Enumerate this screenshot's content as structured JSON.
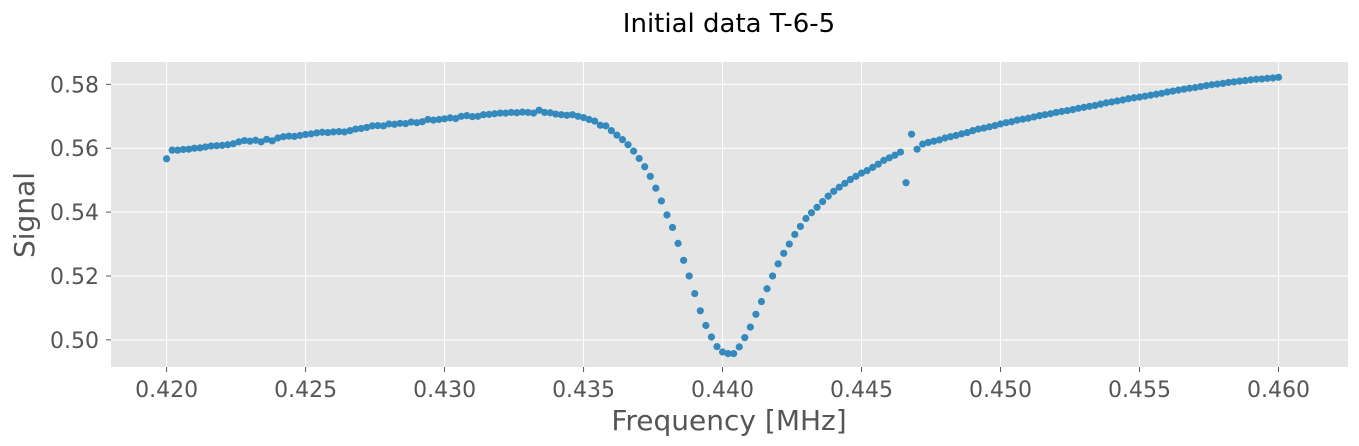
{
  "chart_data": {
    "type": "scatter",
    "title": "Initial data T-6-5",
    "xlabel": "Frequency [MHz]",
    "ylabel": "Signal",
    "xlim": [
      0.418,
      0.4625
    ],
    "ylim": [
      0.4915,
      0.587
    ],
    "xticks": [
      0.42,
      0.425,
      0.43,
      0.435,
      0.44,
      0.445,
      0.45,
      0.455,
      0.46
    ],
    "xtick_labels": [
      "0.420",
      "0.425",
      "0.430",
      "0.435",
      "0.440",
      "0.445",
      "0.450",
      "0.455",
      "0.460"
    ],
    "yticks": [
      0.5,
      0.52,
      0.54,
      0.56,
      0.58
    ],
    "ytick_labels": [
      "0.50",
      "0.52",
      "0.54",
      "0.56",
      "0.58"
    ],
    "grid": true,
    "colors": {
      "marker": "#348abd",
      "background": "#e5e5e5",
      "grid": "#ffffff"
    },
    "series": [
      {
        "points": [
          [
            0.42,
            0.5567
          ],
          [
            0.4202,
            0.5594
          ],
          [
            0.4204,
            0.5594
          ],
          [
            0.4206,
            0.5596
          ],
          [
            0.4208,
            0.5597
          ],
          [
            0.421,
            0.56
          ],
          [
            0.4212,
            0.5601
          ],
          [
            0.4214,
            0.5604
          ],
          [
            0.4216,
            0.5607
          ],
          [
            0.4218,
            0.5608
          ],
          [
            0.422,
            0.5609
          ],
          [
            0.4222,
            0.5611
          ],
          [
            0.4224,
            0.5614
          ],
          [
            0.4226,
            0.562
          ],
          [
            0.4228,
            0.5624
          ],
          [
            0.423,
            0.5622
          ],
          [
            0.4232,
            0.5625
          ],
          [
            0.4234,
            0.562
          ],
          [
            0.4236,
            0.5628
          ],
          [
            0.4238,
            0.5623
          ],
          [
            0.424,
            0.5632
          ],
          [
            0.4242,
            0.5636
          ],
          [
            0.4244,
            0.5638
          ],
          [
            0.4246,
            0.5637
          ],
          [
            0.4248,
            0.564
          ],
          [
            0.425,
            0.5643
          ],
          [
            0.4252,
            0.5645
          ],
          [
            0.4254,
            0.5648
          ],
          [
            0.4256,
            0.565
          ],
          [
            0.4258,
            0.5649
          ],
          [
            0.426,
            0.5651
          ],
          [
            0.4262,
            0.5652
          ],
          [
            0.4264,
            0.5651
          ],
          [
            0.4266,
            0.5655
          ],
          [
            0.4268,
            0.566
          ],
          [
            0.427,
            0.5662
          ],
          [
            0.4272,
            0.5665
          ],
          [
            0.4274,
            0.567
          ],
          [
            0.4276,
            0.5671
          ],
          [
            0.4278,
            0.567
          ],
          [
            0.428,
            0.5676
          ],
          [
            0.4282,
            0.5675
          ],
          [
            0.4284,
            0.5678
          ],
          [
            0.4286,
            0.5677
          ],
          [
            0.4288,
            0.5682
          ],
          [
            0.429,
            0.568
          ],
          [
            0.4292,
            0.5683
          ],
          [
            0.4294,
            0.569
          ],
          [
            0.4296,
            0.5688
          ],
          [
            0.4298,
            0.569
          ],
          [
            0.43,
            0.5692
          ],
          [
            0.4302,
            0.5695
          ],
          [
            0.4304,
            0.5693
          ],
          [
            0.4306,
            0.57
          ],
          [
            0.4308,
            0.5702
          ],
          [
            0.431,
            0.5699
          ],
          [
            0.4312,
            0.57
          ],
          [
            0.4314,
            0.5705
          ],
          [
            0.4316,
            0.5706
          ],
          [
            0.4318,
            0.5708
          ],
          [
            0.432,
            0.571
          ],
          [
            0.4322,
            0.571
          ],
          [
            0.4324,
            0.5712
          ],
          [
            0.4326,
            0.5711
          ],
          [
            0.4328,
            0.5713
          ],
          [
            0.433,
            0.5712
          ],
          [
            0.4332,
            0.571
          ],
          [
            0.4334,
            0.5719
          ],
          [
            0.4336,
            0.5712
          ],
          [
            0.4338,
            0.5711
          ],
          [
            0.434,
            0.5707
          ],
          [
            0.4342,
            0.5705
          ],
          [
            0.4344,
            0.5703
          ],
          [
            0.4346,
            0.5705
          ],
          [
            0.4348,
            0.57
          ],
          [
            0.435,
            0.5696
          ],
          [
            0.4352,
            0.569
          ],
          [
            0.4354,
            0.5685
          ],
          [
            0.4356,
            0.5672
          ],
          [
            0.4358,
            0.567
          ],
          [
            0.436,
            0.5655
          ],
          [
            0.4362,
            0.5641
          ],
          [
            0.4364,
            0.5627
          ],
          [
            0.4366,
            0.5611
          ],
          [
            0.4368,
            0.5591
          ],
          [
            0.437,
            0.5568
          ],
          [
            0.4372,
            0.5542
          ],
          [
            0.4374,
            0.5512
          ],
          [
            0.4376,
            0.5475
          ],
          [
            0.4378,
            0.5435
          ],
          [
            0.438,
            0.5391
          ],
          [
            0.4382,
            0.5352
          ],
          [
            0.4384,
            0.5302
          ],
          [
            0.4386,
            0.5249
          ],
          [
            0.4388,
            0.52
          ],
          [
            0.439,
            0.5145
          ],
          [
            0.4392,
            0.5091
          ],
          [
            0.4394,
            0.5045
          ],
          [
            0.4396,
            0.5009
          ],
          [
            0.4398,
            0.4979
          ],
          [
            0.44,
            0.4962
          ],
          [
            0.4402,
            0.4957
          ],
          [
            0.4404,
            0.4957
          ],
          [
            0.4406,
            0.4978
          ],
          [
            0.4408,
            0.5007
          ],
          [
            0.441,
            0.504
          ],
          [
            0.4412,
            0.508
          ],
          [
            0.4414,
            0.512
          ],
          [
            0.4416,
            0.516
          ],
          [
            0.4418,
            0.52
          ],
          [
            0.442,
            0.5238
          ],
          [
            0.4422,
            0.5271
          ],
          [
            0.4424,
            0.53
          ],
          [
            0.4426,
            0.533
          ],
          [
            0.4428,
            0.5355
          ],
          [
            0.443,
            0.538
          ],
          [
            0.4432,
            0.5398
          ],
          [
            0.4434,
            0.5415
          ],
          [
            0.4436,
            0.5433
          ],
          [
            0.4438,
            0.545
          ],
          [
            0.444,
            0.5465
          ],
          [
            0.4442,
            0.5478
          ],
          [
            0.4444,
            0.549
          ],
          [
            0.4446,
            0.5502
          ],
          [
            0.4448,
            0.5512
          ],
          [
            0.445,
            0.5522
          ],
          [
            0.4452,
            0.553
          ],
          [
            0.4454,
            0.554
          ],
          [
            0.4456,
            0.555
          ],
          [
            0.4458,
            0.5562
          ],
          [
            0.446,
            0.557
          ],
          [
            0.4462,
            0.5578
          ],
          [
            0.4464,
            0.5588
          ],
          [
            0.4466,
            0.5492
          ],
          [
            0.4468,
            0.5644
          ],
          [
            0.447,
            0.5597
          ],
          [
            0.4472,
            0.5613
          ],
          [
            0.4474,
            0.5618
          ],
          [
            0.4476,
            0.5622
          ],
          [
            0.4478,
            0.5626
          ],
          [
            0.448,
            0.5632
          ],
          [
            0.4482,
            0.5636
          ],
          [
            0.4484,
            0.564
          ],
          [
            0.4486,
            0.5645
          ],
          [
            0.4488,
            0.5649
          ],
          [
            0.449,
            0.5655
          ],
          [
            0.4492,
            0.566
          ],
          [
            0.4494,
            0.5663
          ],
          [
            0.4496,
            0.5667
          ],
          [
            0.4498,
            0.5671
          ],
          [
            0.45,
            0.5676
          ],
          [
            0.4502,
            0.568
          ],
          [
            0.4504,
            0.5683
          ],
          [
            0.4506,
            0.5688
          ],
          [
            0.4508,
            0.5691
          ],
          [
            0.451,
            0.5694
          ],
          [
            0.4512,
            0.5698
          ],
          [
            0.4514,
            0.5702
          ],
          [
            0.4516,
            0.5705
          ],
          [
            0.4518,
            0.5708
          ],
          [
            0.452,
            0.5712
          ],
          [
            0.4522,
            0.5715
          ],
          [
            0.4524,
            0.5718
          ],
          [
            0.4526,
            0.5721
          ],
          [
            0.4528,
            0.5725
          ],
          [
            0.453,
            0.5728
          ],
          [
            0.4532,
            0.5731
          ],
          [
            0.4534,
            0.5734
          ],
          [
            0.4536,
            0.5738
          ],
          [
            0.4538,
            0.5742
          ],
          [
            0.454,
            0.5745
          ],
          [
            0.4542,
            0.5748
          ],
          [
            0.4544,
            0.5751
          ],
          [
            0.4546,
            0.5755
          ],
          [
            0.4548,
            0.5758
          ],
          [
            0.455,
            0.576
          ],
          [
            0.4552,
            0.5763
          ],
          [
            0.4554,
            0.5766
          ],
          [
            0.4556,
            0.5769
          ],
          [
            0.4558,
            0.5772
          ],
          [
            0.456,
            0.5776
          ],
          [
            0.4562,
            0.5779
          ],
          [
            0.4564,
            0.5782
          ],
          [
            0.4566,
            0.5785
          ],
          [
            0.4568,
            0.5788
          ],
          [
            0.457,
            0.579
          ],
          [
            0.4572,
            0.5793
          ],
          [
            0.4574,
            0.5796
          ],
          [
            0.4576,
            0.5799
          ],
          [
            0.4578,
            0.5801
          ],
          [
            0.458,
            0.5803
          ],
          [
            0.4582,
            0.5806
          ],
          [
            0.4584,
            0.5808
          ],
          [
            0.4586,
            0.581
          ],
          [
            0.4588,
            0.5812
          ],
          [
            0.459,
            0.5814
          ],
          [
            0.4592,
            0.5816
          ],
          [
            0.4594,
            0.5817
          ],
          [
            0.4596,
            0.5819
          ],
          [
            0.4598,
            0.582
          ],
          [
            0.46,
            0.5822
          ]
        ]
      }
    ]
  }
}
